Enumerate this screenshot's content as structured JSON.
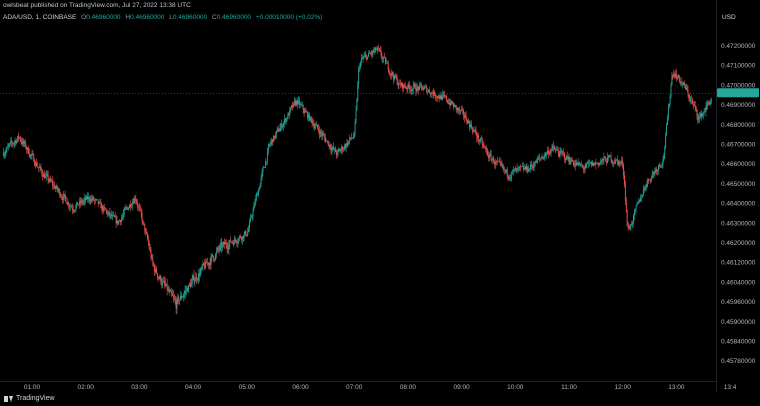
{
  "header": {
    "published_by": "owlsbeat published on TradingView.com, Jul 27, 2022 13:38 UTC"
  },
  "legend": {
    "symbol": "ADA/USD, 1, COINBASE",
    "open_label": "O",
    "open_value": "0.46960000",
    "high_label": "H",
    "high_value": "0.46960000",
    "low_label": "L",
    "low_value": "0.46960000",
    "close_label": "C",
    "close_value": "0.46960000",
    "change": "+0.00010000 (+0.02%)"
  },
  "axis": {
    "currency": "USD",
    "current_price_label": ""
  },
  "footer": {
    "logo_text": "TradingView"
  },
  "colors": {
    "background": "#000000",
    "up": "#26a69a",
    "down": "#ef5350",
    "text": "#d1d4dc",
    "axis_text": "#b2b5be",
    "price_marker": "#26a69a",
    "price_line": "#5d606b"
  },
  "chart_data": {
    "type": "candlestick",
    "title": "",
    "xlabel": "",
    "ylabel": "",
    "x_tick_labels": [
      "01:00",
      "02:00",
      "03:00",
      "04:00",
      "05:00",
      "06:00",
      "07:00",
      "08:00",
      "09:00",
      "10:00",
      "11:00",
      "12:00",
      "13:00",
      "13:4"
    ],
    "y_tick_labels": [
      "0.47200000",
      "0.47100000",
      "0.47000000",
      "0.46900000",
      "0.46800000",
      "0.46700000",
      "0.46600000",
      "0.46500000",
      "0.46400000",
      "0.46300000",
      "0.46200000",
      "0.46120000",
      "0.46040000",
      "0.45960000",
      "0.45900000",
      "0.45840000",
      "0.45780000"
    ],
    "ylim": [
      0.4574,
      0.4728
    ],
    "x_range": [
      "00:28",
      "13:42"
    ],
    "grid": false,
    "current_price_line": 0.4696,
    "price_path_keypoints": [
      {
        "t": "00:28",
        "price": 0.4666
      },
      {
        "t": "00:45",
        "price": 0.4674
      },
      {
        "t": "01:10",
        "price": 0.4656
      },
      {
        "t": "01:45",
        "price": 0.4638
      },
      {
        "t": "02:05",
        "price": 0.4643
      },
      {
        "t": "02:35",
        "price": 0.463
      },
      {
        "t": "02:55",
        "price": 0.4644
      },
      {
        "t": "03:15",
        "price": 0.461
      },
      {
        "t": "03:40",
        "price": 0.4595
      },
      {
        "t": "04:00",
        "price": 0.4605
      },
      {
        "t": "04:30",
        "price": 0.4618
      },
      {
        "t": "05:00",
        "price": 0.4625
      },
      {
        "t": "05:25",
        "price": 0.467
      },
      {
        "t": "05:55",
        "price": 0.4692
      },
      {
        "t": "06:15",
        "price": 0.468
      },
      {
        "t": "06:40",
        "price": 0.4665
      },
      {
        "t": "07:00",
        "price": 0.4675
      },
      {
        "t": "07:05",
        "price": 0.4712
      },
      {
        "t": "07:25",
        "price": 0.4718
      },
      {
        "t": "07:50",
        "price": 0.47
      },
      {
        "t": "08:20",
        "price": 0.4698
      },
      {
        "t": "08:45",
        "price": 0.4692
      },
      {
        "t": "09:05",
        "price": 0.4683
      },
      {
        "t": "09:30",
        "price": 0.4664
      },
      {
        "t": "09:50",
        "price": 0.4655
      },
      {
        "t": "10:15",
        "price": 0.4658
      },
      {
        "t": "10:40",
        "price": 0.4668
      },
      {
        "t": "11:15",
        "price": 0.4658
      },
      {
        "t": "11:45",
        "price": 0.4663
      },
      {
        "t": "12:00",
        "price": 0.466
      },
      {
        "t": "12:05",
        "price": 0.4625
      },
      {
        "t": "12:25",
        "price": 0.465
      },
      {
        "t": "12:45",
        "price": 0.4663
      },
      {
        "t": "12:55",
        "price": 0.4708
      },
      {
        "t": "13:10",
        "price": 0.4698
      },
      {
        "t": "13:25",
        "price": 0.4683
      },
      {
        "t": "13:42",
        "price": 0.4696
      }
    ]
  }
}
